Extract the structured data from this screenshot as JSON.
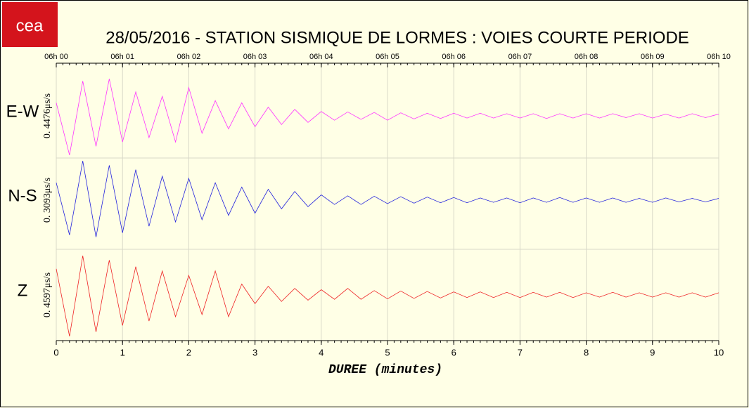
{
  "logo": "cea",
  "chart_data": {
    "type": "seismogram",
    "title": "28/05/2016  -  STATION SISMIQUE DE LORMES : VOIES COURTE PERIODE",
    "xlabel": "DUREE (minutes)",
    "xlim": [
      0,
      10
    ],
    "xticks": [
      0,
      1,
      2,
      3,
      4,
      5,
      6,
      7,
      8,
      9,
      10
    ],
    "x2ticks": [
      {
        "value": 0,
        "label": "06h 00"
      },
      {
        "value": 1,
        "label": "06h 01"
      },
      {
        "value": 2,
        "label": "06h 02"
      },
      {
        "value": 3,
        "label": "06h 03"
      },
      {
        "value": 4,
        "label": "06h 04"
      },
      {
        "value": 5,
        "label": "06h 05"
      },
      {
        "value": 6,
        "label": "06h 06"
      },
      {
        "value": 7,
        "label": "06h 07"
      },
      {
        "value": 8,
        "label": "06h 08"
      },
      {
        "value": 9,
        "label": "06h 09"
      },
      {
        "value": 10,
        "label": "06h 10"
      }
    ],
    "grid": true,
    "x": [
      0,
      0.2,
      0.4,
      0.6,
      0.8,
      1,
      1.2,
      1.4,
      1.6,
      1.8,
      2,
      2.2,
      2.4,
      2.6,
      2.8,
      3,
      3.2,
      3.4,
      3.6,
      3.8,
      4,
      4.2,
      4.4,
      4.6,
      4.8,
      5,
      5.2,
      5.4,
      5.6,
      5.8,
      6,
      6.2,
      6.4,
      6.6,
      6.8,
      7,
      7.2,
      7.4,
      7.6,
      7.8,
      8,
      8.2,
      8.4,
      8.6,
      8.8,
      9,
      9.2,
      9.4,
      9.6,
      9.8,
      10
    ],
    "series": [
      {
        "name": "E-W",
        "scale_label": "0. 4476μs/s",
        "color": "#ff33ff",
        "ylim": [
          -1,
          1
        ],
        "values": [
          0.3,
          -0.9,
          0.8,
          -0.7,
          0.85,
          -0.6,
          0.55,
          -0.5,
          0.45,
          -0.6,
          0.65,
          -0.4,
          0.35,
          -0.3,
          0.3,
          -0.25,
          0.2,
          -0.2,
          0.15,
          -0.15,
          0.1,
          -0.1,
          0.09,
          -0.08,
          0.08,
          -0.1,
          0.07,
          -0.07,
          0.06,
          -0.06,
          0.06,
          -0.05,
          0.06,
          -0.05,
          0.05,
          -0.05,
          0.05,
          -0.06,
          0.05,
          -0.05,
          0.05,
          -0.05,
          0.05,
          -0.04,
          0.05,
          -0.05,
          0.04,
          -0.05,
          0.05,
          -0.04,
          0.04
        ]
      },
      {
        "name": "N-S",
        "scale_label": "0. 3093μs/s",
        "color": "#2222dd",
        "ylim": [
          -1,
          1
        ],
        "values": [
          0.4,
          -0.8,
          0.9,
          -0.85,
          0.8,
          -0.75,
          0.7,
          -0.6,
          0.55,
          -0.5,
          0.5,
          -0.45,
          0.4,
          -0.35,
          0.3,
          -0.3,
          0.25,
          -0.2,
          0.2,
          -0.15,
          0.12,
          -0.1,
          0.1,
          -0.1,
          0.09,
          -0.08,
          0.08,
          -0.07,
          0.07,
          -0.06,
          0.06,
          -0.06,
          0.05,
          -0.05,
          0.05,
          -0.06,
          0.05,
          -0.05,
          0.06,
          -0.05,
          0.05,
          -0.05,
          0.05,
          -0.05,
          0.04,
          -0.05,
          0.05,
          -0.04,
          0.04,
          -0.04,
          0.04
        ]
      },
      {
        "name": "Z",
        "scale_label": "0. 4597μs/s",
        "color": "#ee2222",
        "ylim": [
          -1,
          1
        ],
        "values": [
          0.6,
          -0.95,
          0.9,
          -0.85,
          0.8,
          -0.7,
          0.65,
          -0.6,
          0.55,
          -0.5,
          0.45,
          -0.45,
          0.55,
          -0.5,
          0.25,
          -0.2,
          0.2,
          -0.15,
          0.15,
          -0.12,
          0.12,
          -0.1,
          0.15,
          -0.1,
          0.1,
          -0.09,
          0.09,
          -0.08,
          0.08,
          -0.07,
          0.07,
          -0.06,
          0.07,
          -0.06,
          0.06,
          -0.06,
          0.06,
          -0.05,
          0.06,
          -0.06,
          0.05,
          -0.05,
          0.06,
          -0.05,
          0.05,
          -0.05,
          0.05,
          -0.05,
          0.05,
          -0.05,
          0.05
        ]
      }
    ]
  }
}
